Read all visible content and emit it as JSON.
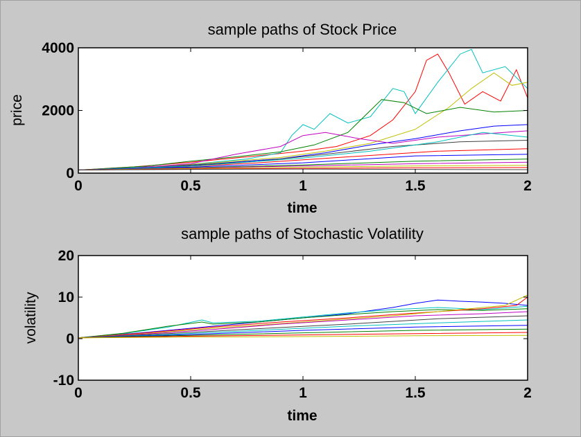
{
  "figure": {
    "background": "#c8c8c8"
  },
  "chart_data": [
    {
      "type": "line",
      "title": "sample paths of Stock Price",
      "xlabel": "time",
      "ylabel": "price",
      "xlim": [
        0,
        2
      ],
      "ylim": [
        0,
        4000
      ],
      "xticks": [
        0,
        0.5,
        1,
        1.5,
        2
      ],
      "xtick_labels": [
        "0",
        "0.5",
        "1",
        "1.5",
        "2"
      ],
      "yticks": [
        0,
        2000,
        4000
      ],
      "ytick_labels": [
        "0",
        "2000",
        "4000"
      ],
      "grid": false,
      "legend": "none",
      "series": [
        {
          "color": "#ff0000",
          "values": [
            [
              0,
              100
            ],
            [
              0.25,
              200
            ],
            [
              0.5,
              350
            ],
            [
              0.75,
              520
            ],
            [
              1.0,
              700
            ],
            [
              1.15,
              850
            ],
            [
              1.3,
              1200
            ],
            [
              1.4,
              1700
            ],
            [
              1.5,
              2600
            ],
            [
              1.55,
              3600
            ],
            [
              1.6,
              3800
            ],
            [
              1.65,
              3200
            ],
            [
              1.72,
              2200
            ],
            [
              1.8,
              2600
            ],
            [
              1.88,
              2300
            ],
            [
              1.95,
              3300
            ],
            [
              2.0,
              2400
            ]
          ]
        },
        {
          "color": "#00bfbf",
          "values": [
            [
              0,
              100
            ],
            [
              0.25,
              180
            ],
            [
              0.5,
              280
            ],
            [
              0.75,
              450
            ],
            [
              0.9,
              650
            ],
            [
              0.95,
              1200
            ],
            [
              1.0,
              1550
            ],
            [
              1.05,
              1400
            ],
            [
              1.12,
              1900
            ],
            [
              1.2,
              1600
            ],
            [
              1.3,
              1800
            ],
            [
              1.4,
              2700
            ],
            [
              1.45,
              2600
            ],
            [
              1.5,
              1900
            ],
            [
              1.6,
              2900
            ],
            [
              1.7,
              3800
            ],
            [
              1.75,
              3950
            ],
            [
              1.8,
              3200
            ],
            [
              1.9,
              3400
            ],
            [
              2.0,
              2700
            ]
          ]
        },
        {
          "color": "#bfbf00",
          "values": [
            [
              0,
              100
            ],
            [
              0.3,
              180
            ],
            [
              0.6,
              330
            ],
            [
              0.9,
              500
            ],
            [
              1.1,
              700
            ],
            [
              1.3,
              950
            ],
            [
              1.5,
              1400
            ],
            [
              1.65,
              2100
            ],
            [
              1.75,
              2700
            ],
            [
              1.85,
              3200
            ],
            [
              1.93,
              2800
            ],
            [
              2.0,
              2900
            ]
          ]
        },
        {
          "color": "#008000",
          "values": [
            [
              0,
              100
            ],
            [
              0.3,
              220
            ],
            [
              0.5,
              380
            ],
            [
              0.7,
              520
            ],
            [
              0.9,
              680
            ],
            [
              1.05,
              900
            ],
            [
              1.2,
              1300
            ],
            [
              1.3,
              2000
            ],
            [
              1.35,
              2350
            ],
            [
              1.45,
              2250
            ],
            [
              1.55,
              1900
            ],
            [
              1.7,
              2100
            ],
            [
              1.85,
              1950
            ],
            [
              2.0,
              2000
            ]
          ]
        },
        {
          "color": "#0000ff",
          "values": [
            [
              0,
              100
            ],
            [
              0.3,
              170
            ],
            [
              0.6,
              300
            ],
            [
              0.9,
              460
            ],
            [
              1.1,
              650
            ],
            [
              1.3,
              900
            ],
            [
              1.5,
              1100
            ],
            [
              1.7,
              1350
            ],
            [
              1.85,
              1500
            ],
            [
              2.0,
              1550
            ]
          ]
        },
        {
          "color": "#bf00bf",
          "values": [
            [
              0,
              100
            ],
            [
              0.25,
              170
            ],
            [
              0.5,
              300
            ],
            [
              0.7,
              600
            ],
            [
              0.9,
              850
            ],
            [
              1.0,
              1200
            ],
            [
              1.1,
              1300
            ],
            [
              1.25,
              1100
            ],
            [
              1.4,
              950
            ],
            [
              1.6,
              1150
            ],
            [
              1.8,
              1250
            ],
            [
              2.0,
              1350
            ]
          ]
        },
        {
          "color": "#404040",
          "values": [
            [
              0,
              100
            ],
            [
              0.4,
              200
            ],
            [
              0.8,
              380
            ],
            [
              1.1,
              600
            ],
            [
              1.4,
              850
            ],
            [
              1.7,
              1000
            ],
            [
              2.0,
              1050
            ]
          ]
        },
        {
          "color": "#ff0000",
          "values": [
            [
              0,
              100
            ],
            [
              0.4,
              180
            ],
            [
              0.8,
              330
            ],
            [
              1.2,
              520
            ],
            [
              1.6,
              700
            ],
            [
              2.0,
              780
            ]
          ]
        },
        {
          "color": "#00bfbf",
          "values": [
            [
              0,
              100
            ],
            [
              0.5,
              220
            ],
            [
              1.0,
              480
            ],
            [
              1.3,
              700
            ],
            [
              1.6,
              1000
            ],
            [
              1.8,
              1300
            ],
            [
              2.0,
              1150
            ]
          ]
        },
        {
          "color": "#0000ff",
          "values": [
            [
              0,
              100
            ],
            [
              0.5,
              190
            ],
            [
              1.0,
              330
            ],
            [
              1.5,
              550
            ],
            [
              2.0,
              600
            ]
          ]
        },
        {
          "color": "#008000",
          "values": [
            [
              0,
              100
            ],
            [
              0.5,
              170
            ],
            [
              1.0,
              260
            ],
            [
              1.5,
              380
            ],
            [
              2.0,
              450
            ]
          ]
        },
        {
          "color": "#bf00bf",
          "values": [
            [
              0,
              100
            ],
            [
              0.5,
              160
            ],
            [
              1.0,
              230
            ],
            [
              1.5,
              300
            ],
            [
              2.0,
              350
            ]
          ]
        },
        {
          "color": "#bfbf00",
          "values": [
            [
              0,
              100
            ],
            [
              0.5,
              150
            ],
            [
              1.0,
              190
            ],
            [
              1.5,
              230
            ],
            [
              2.0,
              250
            ]
          ]
        },
        {
          "color": "#ff0000",
          "values": [
            [
              0,
              100
            ],
            [
              0.5,
              130
            ],
            [
              1.0,
              150
            ],
            [
              1.5,
              170
            ],
            [
              2.0,
              180
            ]
          ]
        },
        {
          "color": "#404040",
          "values": [
            [
              0,
              100
            ],
            [
              0.5,
              120
            ],
            [
              1.0,
              130
            ],
            [
              1.5,
              120
            ],
            [
              2.0,
              110
            ]
          ]
        }
      ]
    },
    {
      "type": "line",
      "title": "sample paths of Stochastic Volatility",
      "xlabel": "time",
      "ylabel": "volatility",
      "xlim": [
        0,
        2
      ],
      "ylim": [
        -10,
        20
      ],
      "xticks": [
        0,
        0.5,
        1,
        1.5,
        2
      ],
      "xtick_labels": [
        "0",
        "0.5",
        "1",
        "1.5",
        "2"
      ],
      "yticks": [
        -10,
        0,
        10,
        20
      ],
      "ytick_labels": [
        "-10",
        "0",
        "10",
        "20"
      ],
      "grid": false,
      "legend": "none",
      "series": [
        {
          "color": "#0000ff",
          "values": [
            [
              0,
              0.2
            ],
            [
              0.3,
              1.5
            ],
            [
              0.6,
              3.0
            ],
            [
              0.9,
              4.5
            ],
            [
              1.2,
              6.0
            ],
            [
              1.4,
              7.5
            ],
            [
              1.5,
              8.5
            ],
            [
              1.6,
              9.3
            ],
            [
              1.7,
              9.0
            ],
            [
              1.8,
              8.8
            ],
            [
              1.9,
              8.5
            ],
            [
              2.0,
              8.0
            ]
          ]
        },
        {
          "color": "#00bfbf",
          "values": [
            [
              0,
              0.2
            ],
            [
              0.2,
              1.2
            ],
            [
              0.4,
              2.8
            ],
            [
              0.55,
              4.5
            ],
            [
              0.6,
              3.8
            ],
            [
              0.8,
              4.2
            ],
            [
              1.0,
              5.2
            ],
            [
              1.2,
              6.2
            ],
            [
              1.4,
              7.0
            ],
            [
              1.6,
              7.5
            ],
            [
              1.8,
              7.0
            ],
            [
              2.0,
              7.8
            ]
          ]
        },
        {
          "color": "#008000",
          "values": [
            [
              0,
              0.2
            ],
            [
              0.2,
              1.3
            ],
            [
              0.4,
              3.0
            ],
            [
              0.55,
              4.0
            ],
            [
              0.6,
              3.5
            ],
            [
              0.8,
              4.0
            ],
            [
              1.0,
              5.0
            ],
            [
              1.2,
              5.8
            ],
            [
              1.4,
              6.5
            ],
            [
              1.6,
              7.0
            ],
            [
              1.8,
              6.8
            ],
            [
              2.0,
              7.2
            ]
          ]
        },
        {
          "color": "#ff0000",
          "values": [
            [
              0,
              0.2
            ],
            [
              0.3,
              1.4
            ],
            [
              0.6,
              2.8
            ],
            [
              0.9,
              4.0
            ],
            [
              1.2,
              5.0
            ],
            [
              1.4,
              5.8
            ],
            [
              1.6,
              6.5
            ],
            [
              1.8,
              7.2
            ],
            [
              1.95,
              8.0
            ],
            [
              2.0,
              10.0
            ]
          ]
        },
        {
          "color": "#bfbf00",
          "values": [
            [
              0,
              0.2
            ],
            [
              0.3,
              1.2
            ],
            [
              0.6,
              2.5
            ],
            [
              1.0,
              4.0
            ],
            [
              1.4,
              5.5
            ],
            [
              1.7,
              7.0
            ],
            [
              1.9,
              8.0
            ],
            [
              2.0,
              10.5
            ]
          ]
        },
        {
          "color": "#bf00bf",
          "values": [
            [
              0,
              0.2
            ],
            [
              0.3,
              1.1
            ],
            [
              0.6,
              2.2
            ],
            [
              0.9,
              3.5
            ],
            [
              1.2,
              4.5
            ],
            [
              1.5,
              5.5
            ],
            [
              1.8,
              6.0
            ],
            [
              2.0,
              6.5
            ]
          ]
        },
        {
          "color": "#404040",
          "values": [
            [
              0,
              0.2
            ],
            [
              0.4,
              1.2
            ],
            [
              0.8,
              2.4
            ],
            [
              1.2,
              3.5
            ],
            [
              1.6,
              4.8
            ],
            [
              2.0,
              5.5
            ]
          ]
        },
        {
          "color": "#00bfbf",
          "values": [
            [
              0,
              0.2
            ],
            [
              0.4,
              1.0
            ],
            [
              0.8,
              2.0
            ],
            [
              1.2,
              3.0
            ],
            [
              1.6,
              3.8
            ],
            [
              2.0,
              4.5
            ]
          ]
        },
        {
          "color": "#0000ff",
          "values": [
            [
              0,
              0.2
            ],
            [
              0.5,
              1.0
            ],
            [
              1.0,
              2.0
            ],
            [
              1.5,
              2.8
            ],
            [
              2.0,
              3.2
            ]
          ]
        },
        {
          "color": "#008000",
          "values": [
            [
              0,
              0.2
            ],
            [
              0.5,
              0.8
            ],
            [
              1.0,
              1.4
            ],
            [
              1.5,
              2.0
            ],
            [
              2.0,
              2.3
            ]
          ]
        },
        {
          "color": "#ff0000",
          "values": [
            [
              0,
              0.2
            ],
            [
              0.5,
              0.6
            ],
            [
              1.0,
              0.9
            ],
            [
              1.5,
              1.2
            ],
            [
              2.0,
              1.5
            ]
          ]
        },
        {
          "color": "#bfbf00",
          "values": [
            [
              0,
              0.2
            ],
            [
              0.5,
              0.4
            ],
            [
              1.0,
              0.5
            ],
            [
              1.5,
              0.7
            ],
            [
              2.0,
              0.8
            ]
          ]
        }
      ]
    }
  ]
}
